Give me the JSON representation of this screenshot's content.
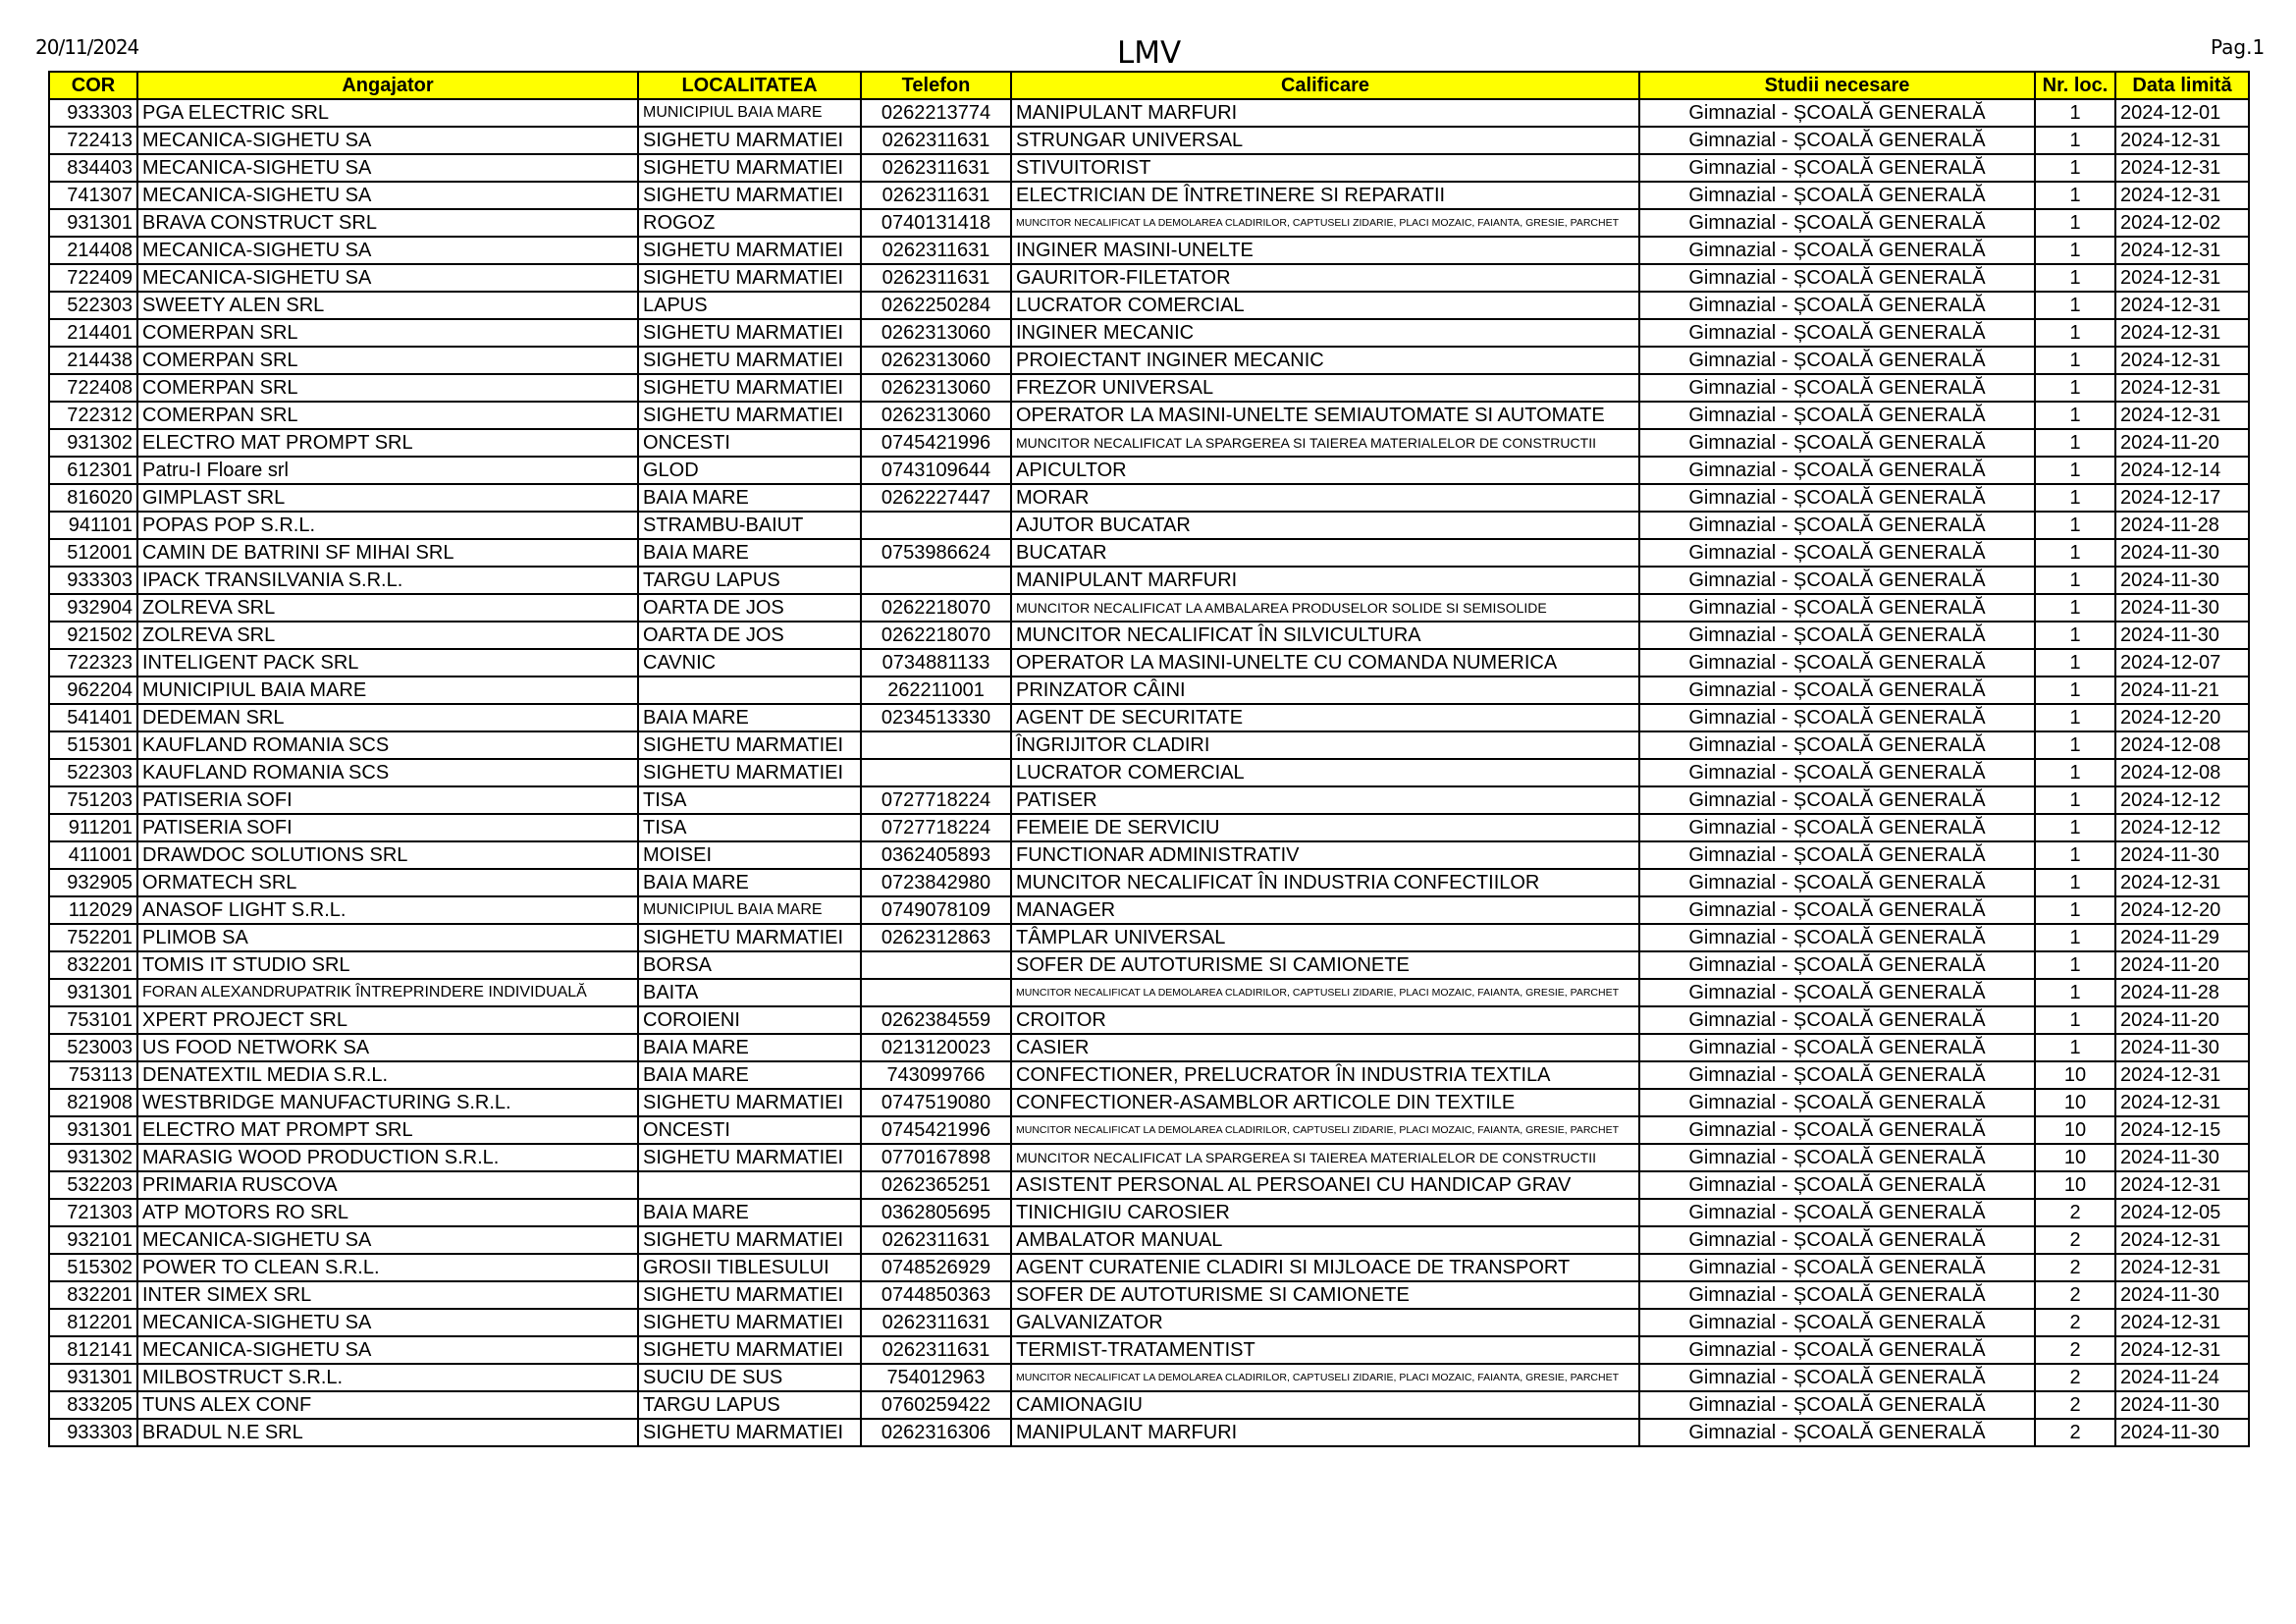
{
  "header": {
    "date": "20/11/2024",
    "title": "LMV",
    "page": "Pag.1"
  },
  "table": {
    "header_color": "#FFFF00",
    "columns": [
      "COR",
      "Angajator",
      "LOCALITATEA",
      "Telefon",
      "Calificare",
      "Studii necesare",
      "Nr. loc.",
      "Data limită"
    ],
    "rows": [
      [
        "933303",
        "PGA ELECTRIC SRL",
        "MUNICIPIUL BAIA MARE",
        "0262213774",
        "MANIPULANT MARFURI",
        "Gimnazial - ȘCOALĂ GENERALĂ",
        "1",
        "2024-12-01"
      ],
      [
        "722413",
        "MECANICA-SIGHETU SA",
        "SIGHETU MARMATIEI",
        "0262311631",
        "STRUNGAR UNIVERSAL",
        "Gimnazial - ȘCOALĂ GENERALĂ",
        "1",
        "2024-12-31"
      ],
      [
        "834403",
        "MECANICA-SIGHETU SA",
        "SIGHETU MARMATIEI",
        "0262311631",
        "STIVUITORIST",
        "Gimnazial - ȘCOALĂ GENERALĂ",
        "1",
        "2024-12-31"
      ],
      [
        "741307",
        "MECANICA-SIGHETU SA",
        "SIGHETU MARMATIEI",
        "0262311631",
        "ELECTRICIAN DE ÎNTRETINERE SI REPARATII",
        "Gimnazial - ȘCOALĂ GENERALĂ",
        "1",
        "2024-12-31"
      ],
      [
        "931301",
        "BRAVA CONSTRUCT SRL",
        "ROGOZ",
        "0740131418",
        "MUNCITOR NECALIFICAT LA DEMOLAREA CLADIRILOR, CAPTUSELI ZIDARIE, PLACI MOZAIC, FAIANTA, GRESIE, PARCHET",
        "Gimnazial - ȘCOALĂ GENERALĂ",
        "1",
        "2024-12-02"
      ],
      [
        "214408",
        "MECANICA-SIGHETU SA",
        "SIGHETU MARMATIEI",
        "0262311631",
        "INGINER MASINI-UNELTE",
        "Gimnazial - ȘCOALĂ GENERALĂ",
        "1",
        "2024-12-31"
      ],
      [
        "722409",
        "MECANICA-SIGHETU SA",
        "SIGHETU MARMATIEI",
        "0262311631",
        "GAURITOR-FILETATOR",
        "Gimnazial - ȘCOALĂ GENERALĂ",
        "1",
        "2024-12-31"
      ],
      [
        "522303",
        "SWEETY ALEN SRL",
        "LAPUS",
        "0262250284",
        "LUCRATOR COMERCIAL",
        "Gimnazial - ȘCOALĂ GENERALĂ",
        "1",
        "2024-12-31"
      ],
      [
        "214401",
        "COMERPAN SRL",
        "SIGHETU MARMATIEI",
        "0262313060",
        "INGINER MECANIC",
        "Gimnazial - ȘCOALĂ GENERALĂ",
        "1",
        "2024-12-31"
      ],
      [
        "214438",
        "COMERPAN SRL",
        "SIGHETU MARMATIEI",
        "0262313060",
        "PROIECTANT INGINER MECANIC",
        "Gimnazial - ȘCOALĂ GENERALĂ",
        "1",
        "2024-12-31"
      ],
      [
        "722408",
        "COMERPAN SRL",
        "SIGHETU MARMATIEI",
        "0262313060",
        "FREZOR UNIVERSAL",
        "Gimnazial - ȘCOALĂ GENERALĂ",
        "1",
        "2024-12-31"
      ],
      [
        "722312",
        "COMERPAN SRL",
        "SIGHETU MARMATIEI",
        "0262313060",
        "OPERATOR LA MASINI-UNELTE SEMIAUTOMATE SI AUTOMATE",
        "Gimnazial - ȘCOALĂ GENERALĂ",
        "1",
        "2024-12-31"
      ],
      [
        "931302",
        "ELECTRO MAT PROMPT SRL",
        "ONCESTI",
        "0745421996",
        "MUNCITOR NECALIFICAT LA SPARGEREA SI TAIEREA MATERIALELOR DE CONSTRUCTII",
        "Gimnazial - ȘCOALĂ GENERALĂ",
        "1",
        "2024-11-20"
      ],
      [
        "612301",
        "Patru-I Floare srl",
        "GLOD",
        "0743109644",
        "APICULTOR",
        "Gimnazial - ȘCOALĂ GENERALĂ",
        "1",
        "2024-12-14"
      ],
      [
        "816020",
        "GIMPLAST SRL",
        "BAIA MARE",
        "0262227447",
        "MORAR",
        "Gimnazial - ȘCOALĂ GENERALĂ",
        "1",
        "2024-12-17"
      ],
      [
        "941101",
        "POPAS POP S.R.L.",
        "STRAMBU-BAIUT",
        "",
        "AJUTOR BUCATAR",
        "Gimnazial - ȘCOALĂ GENERALĂ",
        "1",
        "2024-11-28"
      ],
      [
        "512001",
        "CAMIN DE BATRINI SF MIHAI SRL",
        "BAIA MARE",
        "0753986624",
        "BUCATAR",
        "Gimnazial - ȘCOALĂ GENERALĂ",
        "1",
        "2024-11-30"
      ],
      [
        "933303",
        "IPACK TRANSILVANIA S.R.L.",
        "TARGU LAPUS",
        "",
        "MANIPULANT MARFURI",
        "Gimnazial - ȘCOALĂ GENERALĂ",
        "1",
        "2024-11-30"
      ],
      [
        "932904",
        "ZOLREVA SRL",
        "OARTA DE JOS",
        "0262218070",
        "MUNCITOR NECALIFICAT LA AMBALAREA PRODUSELOR SOLIDE SI SEMISOLIDE",
        "Gimnazial - ȘCOALĂ GENERALĂ",
        "1",
        "2024-11-30"
      ],
      [
        "921502",
        "ZOLREVA SRL",
        "OARTA DE JOS",
        "0262218070",
        "MUNCITOR NECALIFICAT ÎN SILVICULTURA",
        "Gimnazial - ȘCOALĂ GENERALĂ",
        "1",
        "2024-11-30"
      ],
      [
        "722323",
        "INTELIGENT PACK SRL",
        "CAVNIC",
        "0734881133",
        "OPERATOR LA MASINI-UNELTE CU COMANDA NUMERICA",
        "Gimnazial - ȘCOALĂ GENERALĂ",
        "1",
        "2024-12-07"
      ],
      [
        "962204",
        "MUNICIPIUL BAIA MARE",
        "",
        "262211001",
        "PRINZATOR CÂINI",
        "Gimnazial - ȘCOALĂ GENERALĂ",
        "1",
        "2024-11-21"
      ],
      [
        "541401",
        "DEDEMAN SRL",
        "BAIA MARE",
        "0234513330",
        "AGENT DE SECURITATE",
        "Gimnazial - ȘCOALĂ GENERALĂ",
        "1",
        "2024-12-20"
      ],
      [
        "515301",
        "KAUFLAND ROMANIA SCS",
        "SIGHETU MARMATIEI",
        "",
        "ÎNGRIJITOR CLADIRI",
        "Gimnazial - ȘCOALĂ GENERALĂ",
        "1",
        "2024-12-08"
      ],
      [
        "522303",
        "KAUFLAND ROMANIA SCS",
        "SIGHETU MARMATIEI",
        "",
        "LUCRATOR COMERCIAL",
        "Gimnazial - ȘCOALĂ GENERALĂ",
        "1",
        "2024-12-08"
      ],
      [
        "751203",
        "PATISERIA SOFI",
        "TISA",
        "0727718224",
        "PATISER",
        "Gimnazial - ȘCOALĂ GENERALĂ",
        "1",
        "2024-12-12"
      ],
      [
        "911201",
        "PATISERIA SOFI",
        "TISA",
        "0727718224",
        "FEMEIE DE SERVICIU",
        "Gimnazial - ȘCOALĂ GENERALĂ",
        "1",
        "2024-12-12"
      ],
      [
        "411001",
        "DRAWDOC SOLUTIONS SRL",
        "MOISEI",
        "0362405893",
        "FUNCTIONAR ADMINISTRATIV",
        "Gimnazial - ȘCOALĂ GENERALĂ",
        "1",
        "2024-11-30"
      ],
      [
        "932905",
        "ORMATECH SRL",
        "BAIA MARE",
        "0723842980",
        "MUNCITOR NECALIFICAT ÎN INDUSTRIA CONFECTIILOR",
        "Gimnazial - ȘCOALĂ GENERALĂ",
        "1",
        "2024-12-31"
      ],
      [
        "112029",
        "ANASOF LIGHT S.R.L.",
        "MUNICIPIUL BAIA MARE",
        "0749078109",
        "MANAGER",
        "Gimnazial - ȘCOALĂ GENERALĂ",
        "1",
        "2024-12-20"
      ],
      [
        "752201",
        "PLIMOB SA",
        "SIGHETU MARMATIEI",
        "0262312863",
        "TÂMPLAR UNIVERSAL",
        "Gimnazial - ȘCOALĂ GENERALĂ",
        "1",
        "2024-11-29"
      ],
      [
        "832201",
        "TOMIS IT STUDIO SRL",
        "BORSA",
        "",
        "SOFER DE AUTOTURISME SI CAMIONETE",
        "Gimnazial - ȘCOALĂ GENERALĂ",
        "1",
        "2024-11-20"
      ],
      [
        "931301",
        "FORAN ALEXANDRUPATRIK ÎNTREPRINDERE INDIVIDUALĂ",
        "BAITA",
        "",
        "MUNCITOR NECALIFICAT LA DEMOLAREA CLADIRILOR, CAPTUSELI ZIDARIE, PLACI MOZAIC, FAIANTA, GRESIE, PARCHET",
        "Gimnazial - ȘCOALĂ GENERALĂ",
        "1",
        "2024-11-28"
      ],
      [
        "753101",
        "XPERT PROJECT SRL",
        "COROIENI",
        "0262384559",
        "CROITOR",
        "Gimnazial - ȘCOALĂ GENERALĂ",
        "1",
        "2024-11-20"
      ],
      [
        "523003",
        "US FOOD NETWORK SA",
        "BAIA MARE",
        "0213120023",
        "CASIER",
        "Gimnazial - ȘCOALĂ GENERALĂ",
        "1",
        "2024-11-30"
      ],
      [
        "753113",
        "DENATEXTIL MEDIA S.R.L.",
        "BAIA MARE",
        "743099766",
        "CONFECTIONER, PRELUCRATOR ÎN INDUSTRIA TEXTILA",
        "Gimnazial - ȘCOALĂ GENERALĂ",
        "10",
        "2024-12-31"
      ],
      [
        "821908",
        "WESTBRIDGE MANUFACTURING S.R.L.",
        "SIGHETU MARMATIEI",
        "0747519080",
        "CONFECTIONER-ASAMBLOR ARTICOLE DIN TEXTILE",
        "Gimnazial - ȘCOALĂ GENERALĂ",
        "10",
        "2024-12-31"
      ],
      [
        "931301",
        "ELECTRO MAT PROMPT SRL",
        "ONCESTI",
        "0745421996",
        "MUNCITOR NECALIFICAT LA DEMOLAREA CLADIRILOR, CAPTUSELI ZIDARIE, PLACI MOZAIC, FAIANTA, GRESIE, PARCHET",
        "Gimnazial - ȘCOALĂ GENERALĂ",
        "10",
        "2024-12-15"
      ],
      [
        "931302",
        "MARASIG WOOD PRODUCTION S.R.L.",
        "SIGHETU MARMATIEI",
        "0770167898",
        "MUNCITOR NECALIFICAT LA SPARGEREA SI TAIEREA MATERIALELOR DE CONSTRUCTII",
        "Gimnazial - ȘCOALĂ GENERALĂ",
        "10",
        "2024-11-30"
      ],
      [
        "532203",
        "PRIMARIA RUSCOVA",
        "",
        "0262365251",
        "ASISTENT PERSONAL AL PERSOANEI CU HANDICAP GRAV",
        "Gimnazial - ȘCOALĂ GENERALĂ",
        "10",
        "2024-12-31"
      ],
      [
        "721303",
        "ATP MOTORS RO SRL",
        "BAIA MARE",
        "0362805695",
        "TINICHIGIU CAROSIER",
        "Gimnazial - ȘCOALĂ GENERALĂ",
        "2",
        "2024-12-05"
      ],
      [
        "932101",
        "MECANICA-SIGHETU SA",
        "SIGHETU MARMATIEI",
        "0262311631",
        "AMBALATOR MANUAL",
        "Gimnazial - ȘCOALĂ GENERALĂ",
        "2",
        "2024-12-31"
      ],
      [
        "515302",
        "POWER TO CLEAN S.R.L.",
        "GROSII TIBLESULUI",
        "0748526929",
        "AGENT CURATENIE CLADIRI SI MIJLOACE DE TRANSPORT",
        "Gimnazial - ȘCOALĂ GENERALĂ",
        "2",
        "2024-12-31"
      ],
      [
        "832201",
        "INTER SIMEX SRL",
        "SIGHETU MARMATIEI",
        "0744850363",
        "SOFER DE AUTOTURISME SI CAMIONETE",
        "Gimnazial - ȘCOALĂ GENERALĂ",
        "2",
        "2024-11-30"
      ],
      [
        "812201",
        "MECANICA-SIGHETU SA",
        "SIGHETU MARMATIEI",
        "0262311631",
        "GALVANIZATOR",
        "Gimnazial - ȘCOALĂ GENERALĂ",
        "2",
        "2024-12-31"
      ],
      [
        "812141",
        "MECANICA-SIGHETU SA",
        "SIGHETU MARMATIEI",
        "0262311631",
        "TERMIST-TRATAMENTIST",
        "Gimnazial - ȘCOALĂ GENERALĂ",
        "2",
        "2024-12-31"
      ],
      [
        "931301",
        "MILBOSTRUCT S.R.L.",
        "SUCIU DE SUS",
        "754012963",
        "MUNCITOR NECALIFICAT LA DEMOLAREA CLADIRILOR, CAPTUSELI ZIDARIE, PLACI MOZAIC, FAIANTA, GRESIE, PARCHET",
        "Gimnazial - ȘCOALĂ GENERALĂ",
        "2",
        "2024-11-24"
      ],
      [
        "833205",
        "TUNS ALEX CONF",
        "TARGU LAPUS",
        "0760259422",
        "CAMIONAGIU",
        "Gimnazial - ȘCOALĂ GENERALĂ",
        "2",
        "2024-11-30"
      ],
      [
        "933303",
        "BRADUL N.E SRL",
        "SIGHETU MARMATIEI",
        "0262316306",
        "MANIPULANT MARFURI",
        "Gimnazial - ȘCOALĂ GENERALĂ",
        "2",
        "2024-11-30"
      ]
    ]
  }
}
